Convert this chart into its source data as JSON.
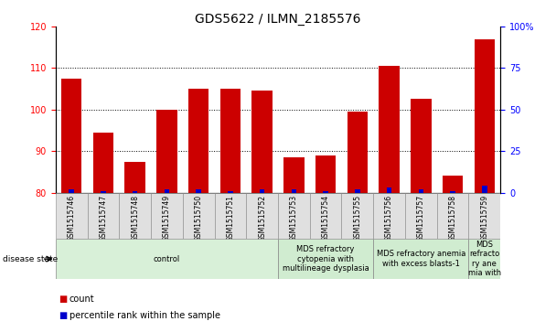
{
  "title": "GDS5622 / ILMN_2185576",
  "samples": [
    "GSM1515746",
    "GSM1515747",
    "GSM1515748",
    "GSM1515749",
    "GSM1515750",
    "GSM1515751",
    "GSM1515752",
    "GSM1515753",
    "GSM1515754",
    "GSM1515755",
    "GSM1515756",
    "GSM1515757",
    "GSM1515758",
    "GSM1515759"
  ],
  "count_values": [
    107.5,
    94.5,
    87.5,
    100.0,
    105.0,
    105.0,
    104.5,
    88.5,
    89.0,
    99.5,
    110.5,
    102.5,
    84.0,
    117.0
  ],
  "percentile_values": [
    2,
    1,
    1,
    2,
    2,
    1,
    2,
    2,
    1,
    2,
    3,
    2,
    1,
    4
  ],
  "ylim_left": [
    80,
    120
  ],
  "ylim_right": [
    0,
    100
  ],
  "yticks_left": [
    80,
    90,
    100,
    110,
    120
  ],
  "yticks_right": [
    0,
    25,
    50,
    75,
    100
  ],
  "bar_color_red": "#cc0000",
  "bar_color_blue": "#0000cc",
  "bar_width": 0.65,
  "disease_groups": [
    {
      "label": "control",
      "start": 0,
      "end": 6,
      "color": "#d8f0d8"
    },
    {
      "label": "MDS refractory\ncytopenia with\nmultilineage dysplasia",
      "start": 7,
      "end": 9,
      "color": "#d0ecd0"
    },
    {
      "label": "MDS refractory anemia\nwith excess blasts-1",
      "start": 10,
      "end": 12,
      "color": "#d0ecd0"
    },
    {
      "label": "MDS\nrefracto\nry ane\nmia with",
      "start": 13,
      "end": 13,
      "color": "#d0ecd0"
    }
  ],
  "legend_labels": [
    "count",
    "percentile rank within the sample"
  ],
  "legend_colors": [
    "#cc0000",
    "#0000cc"
  ],
  "title_fontsize": 10,
  "tick_fontsize": 7,
  "sample_fontsize": 5.5,
  "disease_fontsize": 6,
  "legend_fontsize": 7
}
